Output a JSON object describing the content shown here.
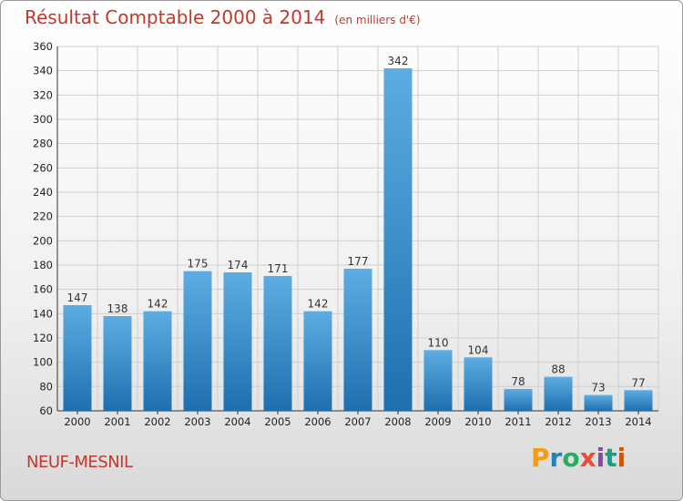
{
  "header": {
    "title": "Résultat Comptable 2000 à 2014",
    "subtitle": "(en milliers d'€)"
  },
  "footer": {
    "commune": "NEUF-MESNIL",
    "logo": "Proxiti",
    "logo_colors": [
      "#f39c12",
      "#2980b9",
      "#27ae60",
      "#e74c3c",
      "#8e44ad",
      "#16a085",
      "#d35400"
    ]
  },
  "colors": {
    "title": "#c0392b",
    "bar_light": "#5dade2",
    "bar_dark": "#1f6fb0"
  },
  "chart_data": {
    "type": "bar",
    "title": "Résultat Comptable 2000 à 2014",
    "xlabel": "",
    "ylabel": "",
    "categories": [
      "2000",
      "2001",
      "2002",
      "2003",
      "2004",
      "2005",
      "2006",
      "2007",
      "2008",
      "2009",
      "2010",
      "2011",
      "2012",
      "2013",
      "2014"
    ],
    "values": [
      147,
      138,
      142,
      175,
      174,
      171,
      142,
      177,
      342,
      110,
      104,
      78,
      88,
      73,
      77
    ],
    "ylim": [
      60,
      360
    ],
    "yticks": [
      60,
      80,
      100,
      120,
      140,
      160,
      180,
      200,
      220,
      240,
      260,
      280,
      300,
      320,
      340,
      360
    ],
    "grid": true
  }
}
